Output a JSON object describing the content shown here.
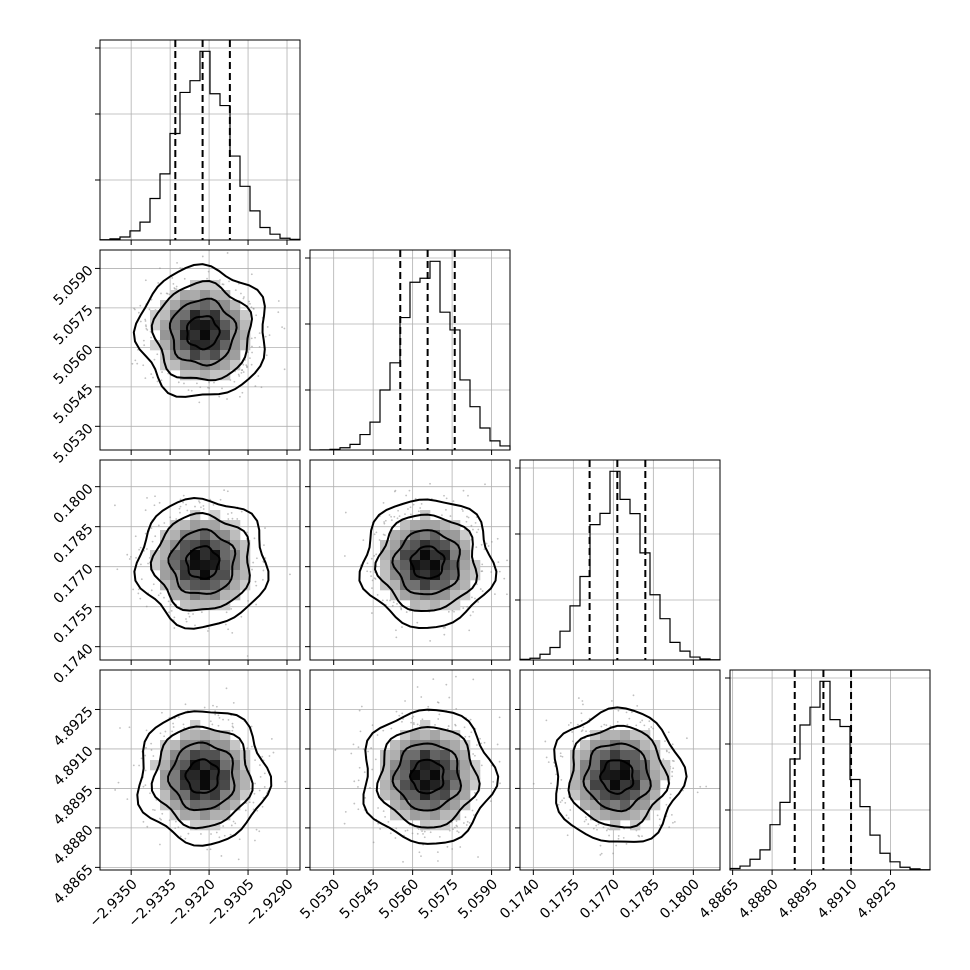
{
  "chart_data": {
    "type": "corner",
    "description_of_layout": "4x4 lower-triangular corner plot; diagonal = 1-D histograms with dashed quantile lines; off-diagonal = 2-D density (scatter + shaded bins + contours)",
    "parameters": [
      {
        "ticks": [
          "−2.9350",
          "−2.9335",
          "−2.9320",
          "−2.9305",
          "−2.9290"
        ],
        "range": [
          -2.9362,
          -2.9285
        ],
        "mean": -2.93225,
        "sigma": 0.00105,
        "quantiles": [
          -2.9333,
          -2.93225,
          -2.9312
        ]
      },
      {
        "ticks": [
          "5.0530",
          "5.0545",
          "5.0560",
          "5.0575",
          "5.0590"
        ],
        "range": [
          5.0521,
          5.0597
        ],
        "mean": 5.05657,
        "sigma": 0.00105,
        "quantiles": [
          5.05553,
          5.05657,
          5.0576
        ]
      },
      {
        "ticks": [
          "0.1740",
          "0.1755",
          "0.1770",
          "0.1785",
          "0.1800"
        ],
        "range": [
          0.1735,
          0.181
        ],
        "mean": 0.17715,
        "sigma": 0.00102,
        "quantiles": [
          0.17611,
          0.17715,
          0.1782
        ]
      },
      {
        "ticks": [
          "4.8865",
          "4.8880",
          "4.8895",
          "4.8910",
          "4.8925"
        ],
        "range": [
          4.8864,
          4.894
        ],
        "mean": 4.88995,
        "sigma": 0.00108,
        "quantiles": [
          4.88886,
          4.88995,
          4.891
        ]
      }
    ],
    "histogram_bins": 20,
    "contour_levels_sigma": [
      0.5,
      1.0,
      1.5,
      2.0
    ],
    "grid": true,
    "legend": "none",
    "title": "",
    "xlabel": "",
    "ylabel": ""
  }
}
